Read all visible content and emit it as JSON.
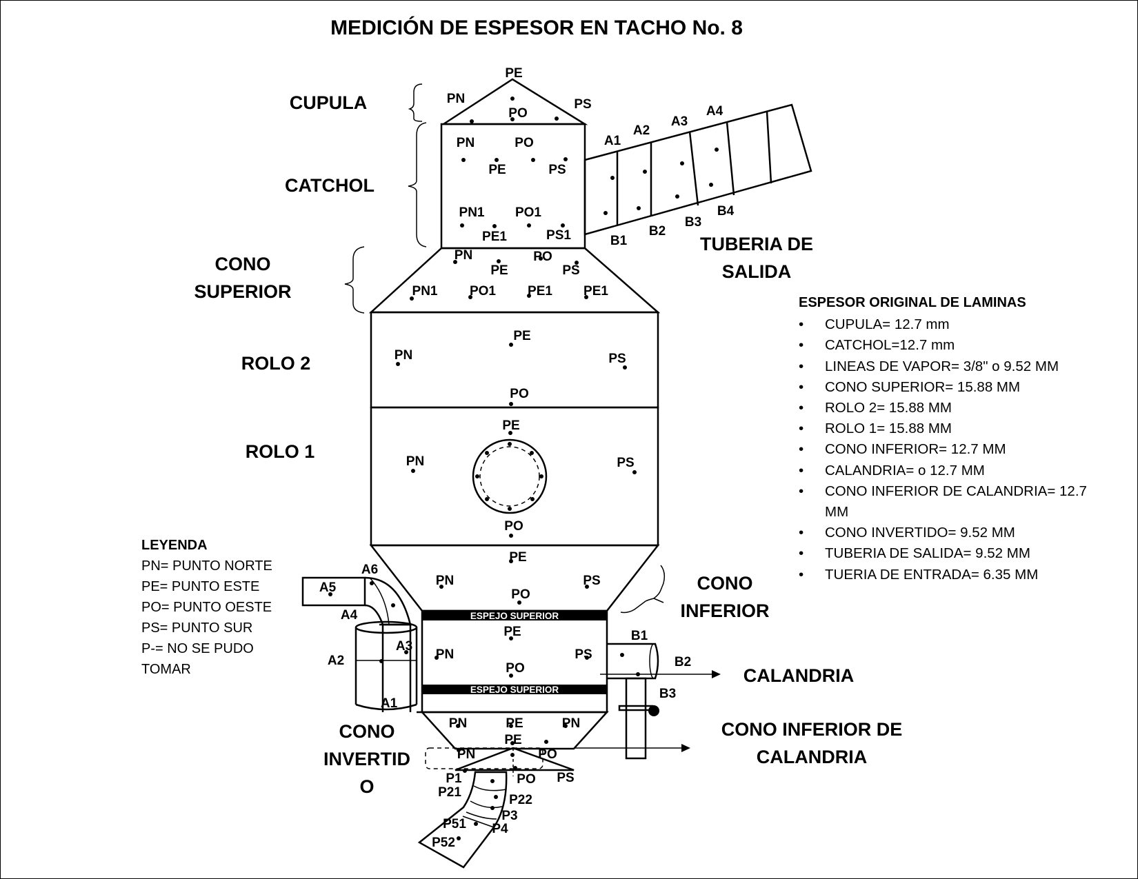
{
  "title": "MEDICIÓN DE ESPESOR EN TACHO No. 8",
  "sections": {
    "cupula": "CUPULA",
    "catchol": "CATCHOL",
    "cono_superior": [
      "CONO",
      "SUPERIOR"
    ],
    "rolo2": "ROLO 2",
    "rolo1": "ROLO 1",
    "cono_inferior": [
      "CONO",
      "INFERIOR"
    ],
    "cono_invertido": [
      "CONO",
      "INVERTID",
      "O"
    ],
    "tuberia_salida": [
      "TUBERIA DE",
      "SALIDA"
    ],
    "calandria": "CALANDRIA",
    "cono_inferior_calandria": [
      "CONO INFERIOR DE",
      "CALANDRIA"
    ]
  },
  "bands": {
    "espejo_top": "ESPEJO SUPERIOR",
    "espejo_bottom": "ESPEJO SUPERIOR"
  },
  "points": {
    "cupula": [
      "PE",
      "PN",
      "PS",
      "PO"
    ],
    "catchol": [
      "PN",
      "PO",
      "PE",
      "PS",
      "PN1",
      "PO1",
      "PE1",
      "PS1"
    ],
    "cono_superior": [
      "PN",
      "PO",
      "PE",
      "PS",
      "PN1",
      "PO1",
      "PE1",
      "PE1"
    ],
    "rolo2": [
      "PE",
      "PN",
      "PS",
      "PO"
    ],
    "rolo1": [
      "PE",
      "PN",
      "PS",
      "PO"
    ],
    "cono_inferior": [
      "PE",
      "PN",
      "PS",
      "PO"
    ],
    "calandria": [
      "PE",
      "PN",
      "PS",
      "PO"
    ],
    "cono_invertido": [
      "PN",
      "PE",
      "PN",
      "PE",
      "PN",
      "PO",
      "PO",
      "PS"
    ],
    "tuberia_salida": [
      "A1",
      "A2",
      "A3",
      "A4",
      "B1",
      "B2",
      "B3",
      "B4"
    ],
    "entrada": [
      "A6",
      "A5",
      "A4",
      "A3",
      "A2",
      "A1"
    ],
    "calandria_salida": [
      "B1",
      "B2",
      "B3"
    ],
    "descarga": [
      "P1",
      "P21",
      "P22",
      "P3",
      "P4",
      "P51",
      "P52"
    ]
  },
  "legend": {
    "title": "LEYENDA",
    "items": [
      "PN= PUNTO NORTE",
      "PE= PUNTO ESTE",
      "PO= PUNTO OESTE",
      "PS= PUNTO SUR",
      "P-= NO SE PUDO TOMAR"
    ]
  },
  "spec": {
    "title": "ESPESOR ORIGINAL DE LAMINAS",
    "items": [
      "CUPULA= 12.7 mm",
      "CATCHOL=12.7 mm",
      "LINEAS DE VAPOR= 3/8\" o 9.52 MM",
      "CONO SUPERIOR=  15.88 MM",
      "ROLO 2= 15.88 MM",
      "ROLO 1= 15.88 MM",
      "CONO INFERIOR= 12.7 MM",
      "CALANDRIA= o 12.7 MM",
      "CONO INFERIOR DE CALANDRIA= 12.7 MM",
      "CONO INVERTIDO= 9.52 MM",
      "TUBERIA DE SALIDA= 9.52 MM",
      "TUERIA DE ENTRADA= 6.35 MM"
    ]
  }
}
